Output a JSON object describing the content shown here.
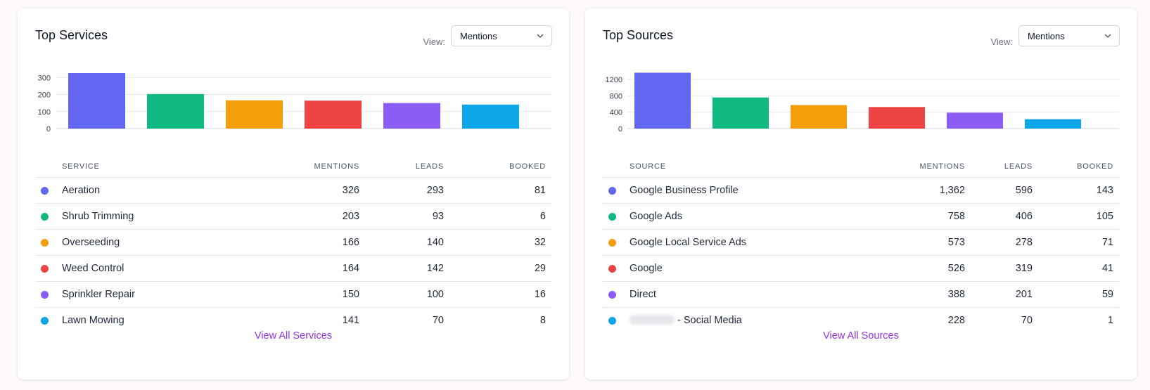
{
  "services": {
    "title": "Top Services",
    "view_label": "View:",
    "view_value": "Mentions",
    "columns": {
      "name": "SERVICE",
      "mentions": "MENTIONS",
      "leads": "LEADS",
      "booked": "BOOKED"
    },
    "rows": [
      {
        "name": "Aeration",
        "mentions": "326",
        "leads": "293",
        "booked": "81",
        "color": "#6366f1"
      },
      {
        "name": "Shrub Trimming",
        "mentions": "203",
        "leads": "93",
        "booked": "6",
        "color": "#10b981"
      },
      {
        "name": "Overseeding",
        "mentions": "166",
        "leads": "140",
        "booked": "32",
        "color": "#f59e0b"
      },
      {
        "name": "Weed Control",
        "mentions": "164",
        "leads": "142",
        "booked": "29",
        "color": "#ef4444"
      },
      {
        "name": "Sprinkler Repair",
        "mentions": "150",
        "leads": "100",
        "booked": "16",
        "color": "#8b5cf6"
      },
      {
        "name": "Lawn Mowing",
        "mentions": "141",
        "leads": "70",
        "booked": "8",
        "color": "#0ea5e9"
      }
    ],
    "view_all": "View All Services"
  },
  "sources": {
    "title": "Top Sources",
    "view_label": "View:",
    "view_value": "Mentions",
    "columns": {
      "name": "SOURCE",
      "mentions": "MENTIONS",
      "leads": "LEADS",
      "booked": "BOOKED"
    },
    "rows": [
      {
        "name": "Google Business Profile",
        "mentions": "1,362",
        "leads": "596",
        "booked": "143",
        "color": "#6366f1"
      },
      {
        "name": "Google Ads",
        "mentions": "758",
        "leads": "406",
        "booked": "105",
        "color": "#10b981"
      },
      {
        "name": "Google Local Service Ads",
        "mentions": "573",
        "leads": "278",
        "booked": "71",
        "color": "#f59e0b"
      },
      {
        "name": "Google",
        "mentions": "526",
        "leads": "319",
        "booked": "41",
        "color": "#ef4444"
      },
      {
        "name": "Direct",
        "mentions": "388",
        "leads": "201",
        "booked": "59",
        "color": "#8b5cf6"
      },
      {
        "name": "- Social Media",
        "mentions": "228",
        "leads": "70",
        "booked": "1",
        "color": "#0ea5e9",
        "redacted": true
      }
    ],
    "view_all": "View All Sources"
  },
  "icons": {
    "select_chevron": "chevron-down-icon",
    "row_marker": "color-dot-icon"
  },
  "chart_data": [
    {
      "type": "bar",
      "categories": [
        "Aeration",
        "Shrub Trimming",
        "Overseeding",
        "Weed Control",
        "Sprinkler Repair",
        "Lawn Mowing"
      ],
      "values": [
        326,
        203,
        166,
        164,
        150,
        141
      ],
      "colors": [
        "#6366f1",
        "#10b981",
        "#f59e0b",
        "#ef4444",
        "#8b5cf6",
        "#0ea5e9"
      ],
      "yticks": [
        0,
        100,
        200,
        300
      ],
      "ylim": [
        0,
        330
      ],
      "grid": true
    },
    {
      "type": "bar",
      "categories": [
        "Google Business Profile",
        "Google Ads",
        "Google Local Service Ads",
        "Google",
        "Direct",
        "- Social Media"
      ],
      "values": [
        1362,
        758,
        573,
        526,
        388,
        228
      ],
      "colors": [
        "#6366f1",
        "#10b981",
        "#f59e0b",
        "#ef4444",
        "#8b5cf6",
        "#0ea5e9"
      ],
      "yticks": [
        0,
        400,
        800,
        1200
      ],
      "ylim": [
        0,
        1370
      ],
      "grid": true
    }
  ]
}
